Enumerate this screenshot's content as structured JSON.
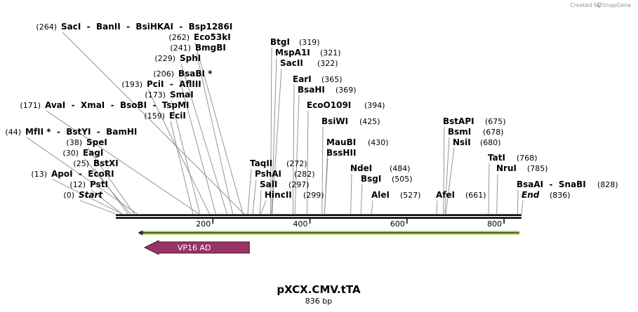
{
  "credit": "Created by",
  "brand": "SnapGene",
  "plasmid": {
    "name": "pXCX.CMV.tTA",
    "length_label": "836 bp",
    "length": 836
  },
  "axis": {
    "ticks": [
      200,
      400,
      600,
      800
    ]
  },
  "sites": [
    {
      "pos": 0,
      "label": "(0)",
      "enzymes": [
        "Start"
      ],
      "italic": true
    },
    {
      "pos": 12,
      "label": "(12)",
      "enzymes": [
        "PstI"
      ]
    },
    {
      "pos": 13,
      "label": "(13)",
      "enzymes": [
        "ApoI",
        "EcoRI"
      ]
    },
    {
      "pos": 25,
      "label": "(25)",
      "enzymes": [
        "BstXI"
      ]
    },
    {
      "pos": 30,
      "label": "(30)",
      "enzymes": [
        "EagI"
      ]
    },
    {
      "pos": 38,
      "label": "(38)",
      "enzymes": [
        "SpeI"
      ]
    },
    {
      "pos": 44,
      "label": "(44)",
      "enzymes": [
        "MfII *",
        "BstYI",
        "BamHI"
      ]
    },
    {
      "pos": 159,
      "label": "(159)",
      "enzymes": [
        "EciI"
      ]
    },
    {
      "pos": 171,
      "label": "(171)",
      "enzymes": [
        "AvaI",
        "XmaI",
        "BsoBI",
        "TspMI"
      ]
    },
    {
      "pos": 173,
      "label": "(173)",
      "enzymes": [
        "SmaI"
      ]
    },
    {
      "pos": 193,
      "label": "(193)",
      "enzymes": [
        "PciI",
        "AflIII"
      ]
    },
    {
      "pos": 206,
      "label": "(206)",
      "enzymes": [
        "BsaBI *"
      ]
    },
    {
      "pos": 229,
      "label": "(229)",
      "enzymes": [
        "SphI"
      ]
    },
    {
      "pos": 241,
      "label": "(241)",
      "enzymes": [
        "BmgBI"
      ]
    },
    {
      "pos": 262,
      "label": "(262)",
      "enzymes": [
        "Eco53kI"
      ]
    },
    {
      "pos": 264,
      "label": "(264)",
      "enzymes": [
        "SacI",
        "BanII",
        "BsiHKAI",
        "Bsp1286I"
      ]
    },
    {
      "pos": 272,
      "label": "(272)",
      "enzymes": [
        "TaqII"
      ]
    },
    {
      "pos": 282,
      "label": "(282)",
      "enzymes": [
        "PshAI"
      ]
    },
    {
      "pos": 297,
      "label": "(297)",
      "enzymes": [
        "SalI"
      ]
    },
    {
      "pos": 299,
      "label": "(299)",
      "enzymes": [
        "HincII"
      ]
    },
    {
      "pos": 319,
      "label": "(319)",
      "enzymes": [
        "BtgI"
      ]
    },
    {
      "pos": 321,
      "label": "(321)",
      "enzymes": [
        "MspA1I"
      ]
    },
    {
      "pos": 322,
      "label": "(322)",
      "enzymes": [
        "SacII"
      ]
    },
    {
      "pos": 365,
      "label": "(365)",
      "enzymes": [
        "EarI"
      ]
    },
    {
      "pos": 369,
      "label": "(369)",
      "enzymes": [
        "BsaHI"
      ]
    },
    {
      "pos": 394,
      "label": "(394)",
      "enzymes": [
        "EcoO109I"
      ]
    },
    {
      "pos": 425,
      "label": "(425)",
      "enzymes": [
        "BsiWI"
      ]
    },
    {
      "pos": 430,
      "label": "(430)",
      "enzymes": [
        "MauBI"
      ]
    },
    {
      "pos": 430,
      "label": "",
      "enzymes": [
        "BssHII"
      ]
    },
    {
      "pos": 484,
      "label": "(484)",
      "enzymes": [
        "NdeI"
      ]
    },
    {
      "pos": 505,
      "label": "(505)",
      "enzymes": [
        "BsgI"
      ]
    },
    {
      "pos": 527,
      "label": "(527)",
      "enzymes": [
        "AleI"
      ]
    },
    {
      "pos": 661,
      "label": "(661)",
      "enzymes": [
        "AfeI"
      ]
    },
    {
      "pos": 675,
      "label": "(675)",
      "enzymes": [
        "BstAPI"
      ]
    },
    {
      "pos": 678,
      "label": "(678)",
      "enzymes": [
        "BsmI"
      ]
    },
    {
      "pos": 680,
      "label": "(680)",
      "enzymes": [
        "NsiI"
      ]
    },
    {
      "pos": 768,
      "label": "(768)",
      "enzymes": [
        "TatI"
      ]
    },
    {
      "pos": 785,
      "label": "(785)",
      "enzymes": [
        "NruI"
      ]
    },
    {
      "pos": 828,
      "label": "(828)",
      "enzymes": [
        "BsaAI",
        "SnaBI"
      ]
    },
    {
      "pos": 836,
      "label": "(836)",
      "enzymes": [
        "End"
      ],
      "italic": true
    }
  ],
  "features": [
    {
      "name": "VP16 AD",
      "start": 60,
      "end": 297,
      "strand": -1,
      "color": "#993366"
    }
  ],
  "orf": {
    "start": 60,
    "end": 836,
    "strand": -1,
    "color": "#99cc33"
  }
}
